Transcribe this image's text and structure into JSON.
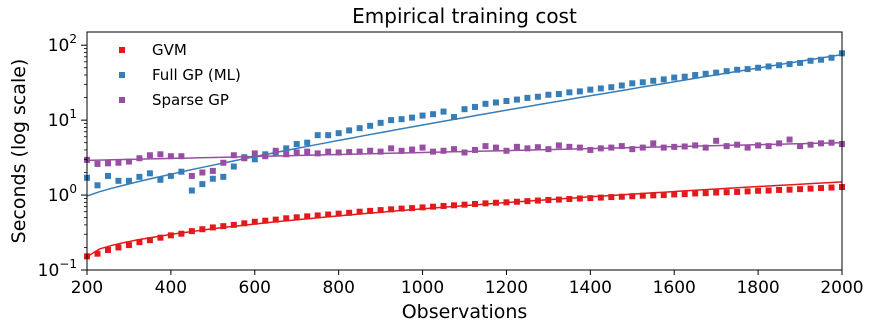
{
  "chart_data": {
    "type": "scatter",
    "title": "Empirical training cost",
    "xlabel": "Observations",
    "ylabel": "Seconds (log scale)",
    "xlim": [
      200,
      2000
    ],
    "ylim": [
      0.1,
      150
    ],
    "yscale": "log",
    "x_ticks": [
      200,
      400,
      600,
      800,
      1000,
      1200,
      1400,
      1600,
      1800,
      2000
    ],
    "x_tick_labels": [
      "200",
      "400",
      "600",
      "800",
      "1000",
      "1200",
      "1400",
      "1600",
      "1800",
      "2000"
    ],
    "y_ticks": [
      0.1,
      1,
      10,
      100
    ],
    "y_tick_labels": [
      {
        "base": "10",
        "exp": "−1"
      },
      {
        "base": "10",
        "exp": "0"
      },
      {
        "base": "10",
        "exp": "1"
      },
      {
        "base": "10",
        "exp": "2"
      }
    ],
    "grid": false,
    "legend_position": "top-left",
    "series": [
      {
        "name": "GVM",
        "color": "#e31a1c",
        "marker": "square",
        "x": [
          200,
          225,
          250,
          275,
          300,
          325,
          350,
          375,
          400,
          425,
          450,
          475,
          500,
          525,
          550,
          575,
          600,
          625,
          650,
          675,
          700,
          725,
          750,
          775,
          800,
          825,
          850,
          875,
          900,
          925,
          950,
          975,
          1000,
          1025,
          1050,
          1075,
          1100,
          1125,
          1150,
          1175,
          1200,
          1225,
          1250,
          1275,
          1300,
          1325,
          1350,
          1375,
          1400,
          1425,
          1450,
          1475,
          1500,
          1525,
          1550,
          1575,
          1600,
          1625,
          1650,
          1675,
          1700,
          1725,
          1750,
          1775,
          1800,
          1825,
          1850,
          1875,
          1900,
          1925,
          1950,
          1975,
          2000
        ],
        "y": [
          0.152,
          0.165,
          0.185,
          0.2,
          0.215,
          0.235,
          0.25,
          0.27,
          0.29,
          0.305,
          0.33,
          0.35,
          0.37,
          0.385,
          0.4,
          0.42,
          0.44,
          0.455,
          0.47,
          0.49,
          0.505,
          0.52,
          0.535,
          0.55,
          0.565,
          0.58,
          0.6,
          0.615,
          0.63,
          0.645,
          0.66,
          0.67,
          0.685,
          0.7,
          0.715,
          0.73,
          0.745,
          0.76,
          0.775,
          0.79,
          0.8,
          0.815,
          0.83,
          0.845,
          0.86,
          0.87,
          0.885,
          0.9,
          0.91,
          0.925,
          0.94,
          0.95,
          0.965,
          0.98,
          0.99,
          1.0,
          1.02,
          1.03,
          1.05,
          1.06,
          1.08,
          1.09,
          1.1,
          1.12,
          1.14,
          1.15,
          1.17,
          1.18,
          1.2,
          1.22,
          1.24,
          1.26,
          1.28
        ],
        "fit_line": {
          "x": [
            200,
            2000
          ],
          "start": 0.15,
          "end": 1.5
        }
      },
      {
        "name": "Full GP (ML)",
        "color": "#377eb8",
        "marker": "square",
        "x": [
          200,
          225,
          250,
          275,
          300,
          325,
          350,
          375,
          400,
          425,
          450,
          475,
          500,
          525,
          550,
          575,
          600,
          625,
          650,
          675,
          700,
          725,
          750,
          775,
          800,
          825,
          850,
          875,
          900,
          925,
          950,
          975,
          1000,
          1025,
          1050,
          1075,
          1100,
          1125,
          1150,
          1175,
          1200,
          1225,
          1250,
          1275,
          1300,
          1325,
          1350,
          1375,
          1400,
          1425,
          1450,
          1475,
          1500,
          1525,
          1550,
          1575,
          1600,
          1625,
          1650,
          1675,
          1700,
          1725,
          1750,
          1775,
          1800,
          1825,
          1850,
          1875,
          1900,
          1925,
          1950,
          1975,
          2000
        ],
        "y": [
          1.7,
          1.35,
          1.8,
          1.55,
          1.55,
          1.75,
          1.95,
          1.6,
          1.8,
          2.05,
          1.15,
          1.4,
          1.65,
          1.75,
          2.4,
          3.2,
          3.0,
          3.5,
          3.7,
          4.2,
          4.8,
          5.0,
          6.3,
          6.3,
          6.7,
          7.3,
          7.8,
          8.4,
          9.2,
          10.0,
          10.3,
          10.8,
          11.5,
          12.0,
          13.0,
          11.0,
          14.0,
          15.0,
          16.5,
          17.2,
          18.0,
          18.8,
          19.8,
          20.5,
          21.8,
          22.3,
          23.5,
          24.2,
          25.5,
          26.5,
          27.5,
          29.0,
          31.0,
          32.0,
          33.5,
          35.0,
          37.0,
          38.0,
          40.0,
          41.5,
          43.0,
          45.0,
          47.0,
          48.0,
          50.0,
          52.0,
          54.0,
          56.0,
          58.0,
          62.0,
          64.0,
          68.0,
          78.0
        ],
        "fit_line": {
          "x": [
            200,
            2000
          ],
          "start": 0.97,
          "end": 75
        }
      },
      {
        "name": "Sparse GP",
        "color": "#984ea3",
        "marker": "square",
        "x": [
          200,
          225,
          250,
          275,
          300,
          325,
          350,
          375,
          400,
          425,
          450,
          475,
          500,
          525,
          550,
          575,
          600,
          625,
          650,
          675,
          700,
          725,
          750,
          775,
          800,
          825,
          850,
          875,
          900,
          925,
          950,
          975,
          1000,
          1025,
          1050,
          1075,
          1100,
          1125,
          1150,
          1175,
          1200,
          1225,
          1250,
          1275,
          1300,
          1325,
          1350,
          1375,
          1400,
          1425,
          1450,
          1475,
          1500,
          1525,
          1550,
          1575,
          1600,
          1625,
          1650,
          1675,
          1700,
          1725,
          1750,
          1775,
          1800,
          1825,
          1850,
          1875,
          1900,
          1925,
          1950,
          1975,
          2000
        ],
        "y": [
          2.95,
          2.6,
          2.65,
          2.7,
          2.8,
          3.1,
          3.4,
          3.5,
          3.3,
          3.3,
          1.8,
          2.0,
          2.1,
          2.7,
          3.4,
          3.1,
          3.6,
          3.3,
          3.9,
          3.5,
          3.7,
          3.8,
          3.6,
          3.8,
          3.7,
          3.75,
          3.8,
          3.9,
          3.8,
          4.2,
          3.9,
          4.05,
          4.3,
          3.8,
          3.9,
          4.1,
          3.7,
          4.0,
          4.5,
          4.3,
          3.9,
          4.4,
          4.2,
          4.35,
          4.1,
          4.6,
          4.4,
          4.3,
          4.0,
          4.2,
          4.3,
          4.5,
          4.1,
          4.3,
          4.9,
          4.3,
          4.4,
          4.45,
          4.6,
          4.3,
          5.3,
          4.5,
          4.7,
          4.3,
          4.6,
          4.5,
          4.9,
          5.5,
          4.5,
          4.7,
          4.9,
          5.0,
          4.8
        ],
        "fit_line": {
          "x": [
            200,
            2000
          ],
          "start": 2.9,
          "end": 5.0
        }
      }
    ]
  }
}
